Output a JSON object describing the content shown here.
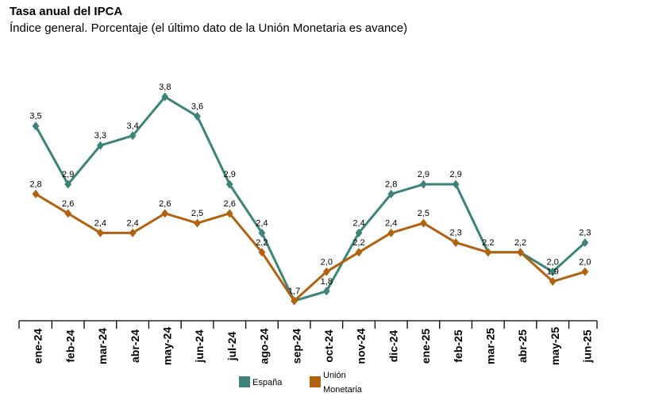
{
  "chart_data": {
    "type": "line",
    "title": "Tasa anual del IPCA",
    "subtitle": "Índice general. Porcentaje (el último dato de la Unión Monetaria es avance)",
    "categories": [
      "ene-24",
      "feb-24",
      "mar-24",
      "abr-24",
      "may-24",
      "jun-24",
      "jul-24",
      "ago-24",
      "sep-24",
      "oct-24",
      "nov-24",
      "dic-24",
      "ene-25",
      "feb-25",
      "mar-25",
      "abr-25",
      "may-25",
      "jun-25"
    ],
    "series": [
      {
        "name": "España",
        "color": "#3c8478",
        "values": [
          3.5,
          2.9,
          3.3,
          3.4,
          3.8,
          3.6,
          2.9,
          2.4,
          1.7,
          1.8,
          2.4,
          2.8,
          2.9,
          2.9,
          2.2,
          2.2,
          2.0,
          2.3
        ],
        "labels": [
          "3,5",
          "2,9",
          "3,3",
          "3,4",
          "3,8",
          "3,6",
          "2,9",
          "2,4",
          "1,7",
          "1,8",
          "2,4",
          "2,8",
          "2,9",
          "2,9",
          "2,2",
          "2,2",
          "2,0",
          "2,3"
        ]
      },
      {
        "name": "Unión Monetaria",
        "legend_lines": [
          "Unión",
          "Monetaria"
        ],
        "color": "#b0620f",
        "values": [
          2.8,
          2.6,
          2.4,
          2.4,
          2.6,
          2.5,
          2.6,
          2.2,
          1.7,
          2.0,
          2.2,
          2.4,
          2.5,
          2.3,
          2.2,
          2.2,
          1.9,
          2.0
        ],
        "labels": [
          "2,8",
          "2,6",
          "2,4",
          "2,4",
          "2,6",
          "2,5",
          "2,6",
          "2,2",
          "",
          "2,0",
          "2,2",
          "2,4",
          "2,5",
          "2,3",
          "",
          "",
          "1,9",
          "2,0"
        ]
      }
    ],
    "ylim": [
      1.5,
      4.0
    ],
    "grid": false,
    "legend_position": "bottom"
  }
}
